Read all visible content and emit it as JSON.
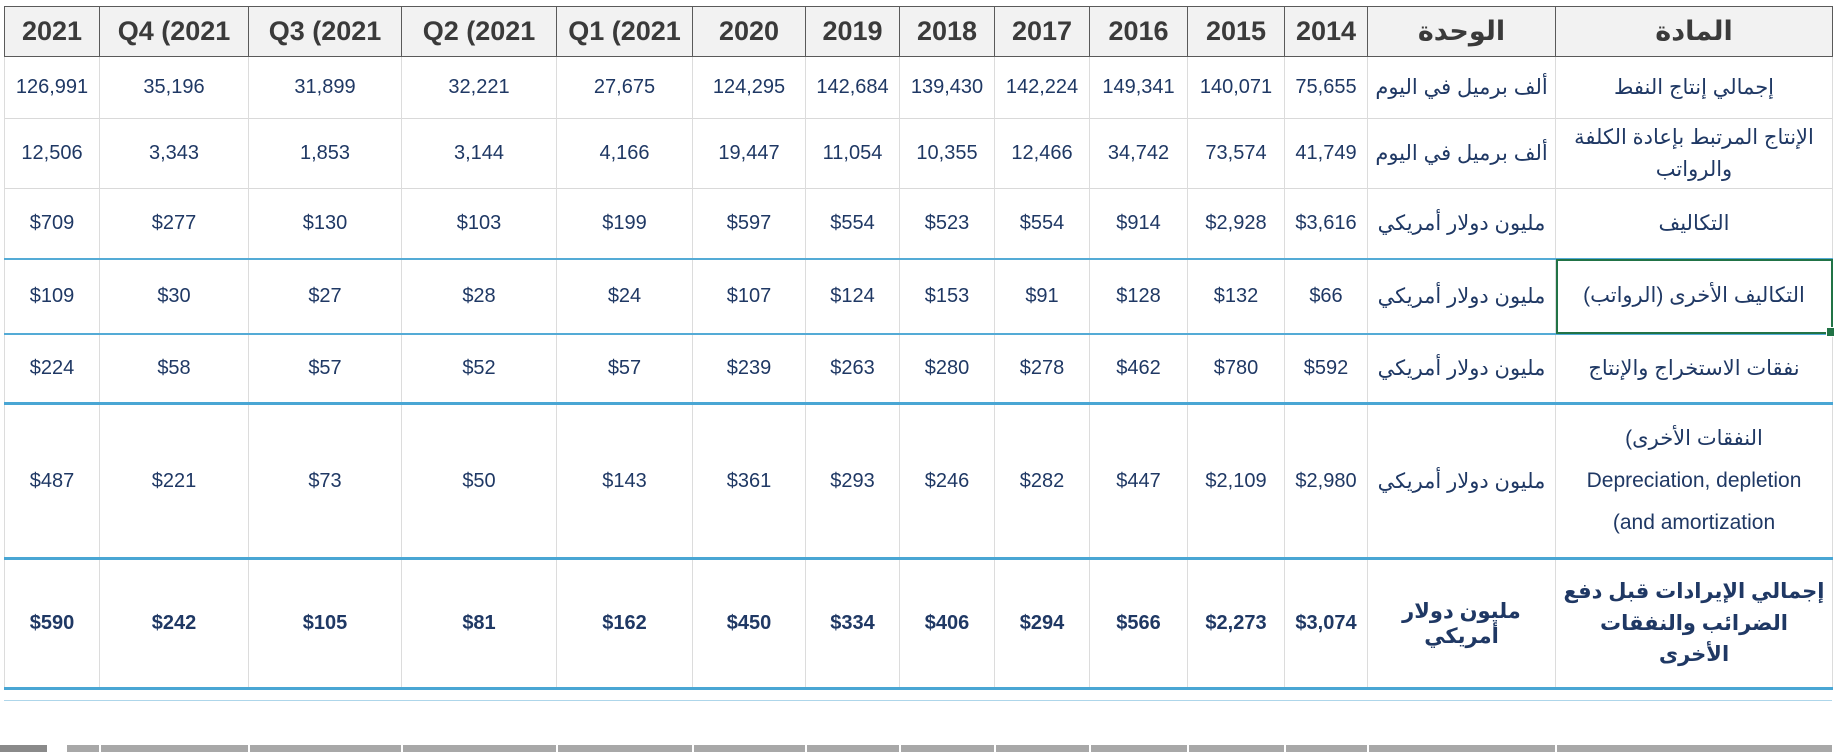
{
  "app": {
    "type": "spreadsheet-table",
    "language": "arabic-rtl"
  },
  "colors": {
    "header_bg": "#f2f2f2",
    "header_text": "#3a3a3a",
    "data_text": "#1f3864",
    "gridline": "#d9d9d9",
    "blue_row_border": "#49a6d4",
    "selection_green": "#217346",
    "bottom_strip_gray": "#a8a8a8"
  },
  "table": {
    "headers": [
      "2021",
      "Q4 (2021",
      "Q3 (2021",
      "Q2 (2021",
      "Q1 (2021",
      "2020",
      "2019",
      "2018",
      "2017",
      "2016",
      "2015",
      "2014",
      "الوحدة",
      "المادة"
    ],
    "unit_column_header": "الوحدة",
    "item_column_header": "المادة",
    "rows": [
      {
        "item": "إجمالي إنتاج النفط",
        "unit": "ألف برميل في اليوم",
        "values": [
          "126,991",
          "35,196",
          "31,899",
          "32,221",
          "27,675",
          "124,295",
          "142,684",
          "139,430",
          "142,224",
          "149,341",
          "140,071",
          "75,655"
        ],
        "bold": false,
        "selected": false
      },
      {
        "item": "الإنتاج المرتبط بإعادة الكلفة\nوالرواتب",
        "unit": "ألف برميل في اليوم",
        "values": [
          "12,506",
          "3,343",
          "1,853",
          "3,144",
          "4,166",
          "19,447",
          "11,054",
          "10,355",
          "12,466",
          "34,742",
          "73,574",
          "41,749"
        ],
        "bold": false,
        "selected": false
      },
      {
        "item": "التكاليف",
        "unit": "مليون دولار أمريكي",
        "values": [
          "$709",
          "$277",
          "$130",
          "$103",
          "$199",
          "$597",
          "$554",
          "$523",
          "$554",
          "$914",
          "$2,928",
          "$3,616"
        ],
        "bold": false,
        "selected": false
      },
      {
        "item": "التكاليف الأخرى (الرواتب)",
        "unit": "مليون دولار أمريكي",
        "values": [
          "$109",
          "$30",
          "$27",
          "$28",
          "$24",
          "$107",
          "$124",
          "$153",
          "$91",
          "$128",
          "$132",
          "$66"
        ],
        "bold": false,
        "selected": true
      },
      {
        "item": "نفقات الاستخراج والإنتاج",
        "unit": "مليون دولار أمريكي",
        "values": [
          "$224",
          "$58",
          "$57",
          "$52",
          "$57",
          "$239",
          "$263",
          "$280",
          "$278",
          "$462",
          "$780",
          "$592"
        ],
        "bold": false,
        "selected": false
      },
      {
        "item": "(النفقات الأخرى\nDepreciation, depletion\n(and amortization",
        "unit": "مليون دولار أمريكي",
        "values": [
          "$487",
          "$221",
          "$73",
          "$50",
          "$143",
          "$361",
          "$293",
          "$246",
          "$282",
          "$447",
          "$2,109",
          "$2,980"
        ],
        "bold": false,
        "selected": false,
        "tall": true
      },
      {
        "item": "إجمالي الإيرادات قبل دفع\nالضرائب والنفقات الأخرى",
        "unit": "مليون دولار\nأمريكي",
        "values": [
          "$590",
          "$242",
          "$105",
          "$81",
          "$162",
          "$450",
          "$334",
          "$406",
          "$294",
          "$566",
          "$2,273",
          "$3,074"
        ],
        "bold": true,
        "selected": false
      }
    ]
  }
}
